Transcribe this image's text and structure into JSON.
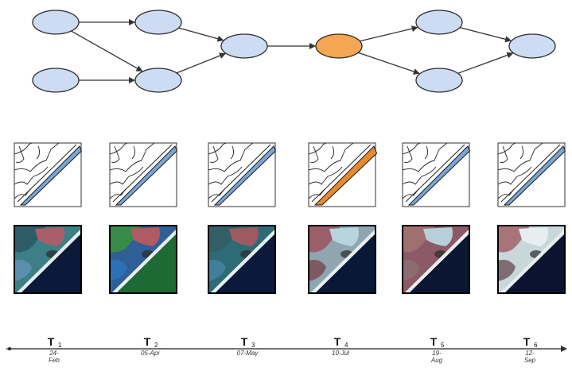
{
  "colors": {
    "node_fill": "#cddcf3",
    "node_stroke": "#2b2b2b",
    "highlight_fill": "#f4a652",
    "edge": "#333333",
    "segment_blue": "#7aa6d6",
    "segment_highlight": "#e9892f",
    "timeline": "#222222"
  },
  "graph": {
    "nodes": [
      {
        "id": "n1",
        "highlighted": false
      },
      {
        "id": "n2",
        "highlighted": false
      },
      {
        "id": "n3",
        "highlighted": false
      },
      {
        "id": "n4",
        "highlighted": false
      },
      {
        "id": "n5",
        "highlighted": false
      },
      {
        "id": "n6",
        "highlighted": true
      },
      {
        "id": "n7",
        "highlighted": false
      },
      {
        "id": "n8",
        "highlighted": false
      },
      {
        "id": "n9",
        "highlighted": false
      }
    ],
    "edges": [
      {
        "from": "n1",
        "to": "n3"
      },
      {
        "from": "n1",
        "to": "n4"
      },
      {
        "from": "n2",
        "to": "n4"
      },
      {
        "from": "n3",
        "to": "n5"
      },
      {
        "from": "n4",
        "to": "n5"
      },
      {
        "from": "n5",
        "to": "n6"
      },
      {
        "from": "n6",
        "to": "n7"
      },
      {
        "from": "n6",
        "to": "n8"
      },
      {
        "from": "n7",
        "to": "n9"
      },
      {
        "from": "n8",
        "to": "n9"
      }
    ]
  },
  "segmentation_maps": [
    {
      "id": "seg-t1",
      "highlighted": false
    },
    {
      "id": "seg-t2",
      "highlighted": false
    },
    {
      "id": "seg-t3",
      "highlighted": false
    },
    {
      "id": "seg-t4",
      "highlighted": true
    },
    {
      "id": "seg-t5",
      "highlighted": false
    },
    {
      "id": "seg-t6",
      "highlighted": false
    }
  ],
  "satellite_images": [
    {
      "id": "img-t1",
      "palette": [
        "#3c7f86",
        "#2e5d67",
        "#a95f6a",
        "#5a8fb0"
      ],
      "sea": "#0b1a3a"
    },
    {
      "id": "img-t2",
      "palette": [
        "#2f5f96",
        "#3a8a4a",
        "#b25a62",
        "#2b6fb5"
      ],
      "sea": "#1d6a35"
    },
    {
      "id": "img-t3",
      "palette": [
        "#2f6b76",
        "#355f66",
        "#9e5961",
        "#3f7f9a"
      ],
      "sea": "#0b1a3a"
    },
    {
      "id": "img-t4",
      "palette": [
        "#8fa6b0",
        "#9b5e6a",
        "#b8d4de",
        "#7b5b61"
      ],
      "sea": "#0a1838"
    },
    {
      "id": "img-t5",
      "palette": [
        "#8b5a66",
        "#a0706f",
        "#b7cfd8",
        "#8c6c70"
      ],
      "sea": "#0a1632"
    },
    {
      "id": "img-t6",
      "palette": [
        "#c8d7da",
        "#a8747a",
        "#e6eef0",
        "#7e6b73"
      ],
      "sea": "#0a1430"
    }
  ],
  "timeline": {
    "points": [
      {
        "t": "T",
        "sub": "1",
        "date_line1": "24-",
        "date_line2": "Feb"
      },
      {
        "t": "T",
        "sub": "2",
        "date_line1": "05-Apr",
        "date_line2": ""
      },
      {
        "t": "T",
        "sub": "3",
        "date_line1": "07-May",
        "date_line2": ""
      },
      {
        "t": "T",
        "sub": "4",
        "date_line1": "10-Jul",
        "date_line2": ""
      },
      {
        "t": "T",
        "sub": "5",
        "date_line1": "19-",
        "date_line2": "Aug"
      },
      {
        "t": "T",
        "sub": "6",
        "date_line1": "12-",
        "date_line2": "Sep"
      }
    ]
  }
}
